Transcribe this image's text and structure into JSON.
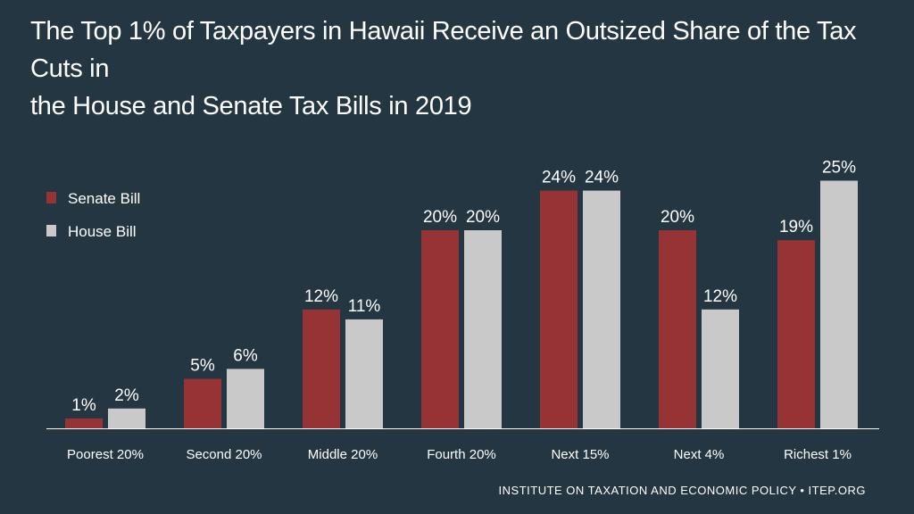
{
  "title": {
    "line1": "The Top 1% of Taxpayers in Hawaii Receive an Outsized Share of the Tax Cuts in",
    "line2": "the House and Senate Tax Bills in 2019"
  },
  "source": "INSTITUTE ON TAXATION AND ECONOMIC POLICY • ITEP.ORG",
  "colors": {
    "background": "#243641",
    "senate": "#963334",
    "house": "#c9c9c9",
    "axis": "#ffffff",
    "text": "#ffffff"
  },
  "chart_data": {
    "type": "bar",
    "title": "The Top 1% of Taxpayers in Hawaii Receive an Outsized Share of the Tax Cuts in the House and Senate Tax Bills in 2019",
    "categories": [
      "Poorest 20%",
      "Second 20%",
      "Middle 20%",
      "Fourth 20%",
      "Next 15%",
      "Next 4%",
      "Richest 1%"
    ],
    "series": [
      {
        "name": "Senate Bill",
        "values": [
          1,
          5,
          12,
          20,
          24,
          20,
          19
        ],
        "labels": [
          "1%",
          "5%",
          "12%",
          "20%",
          "24%",
          "20%",
          "19%"
        ]
      },
      {
        "name": "House Bill",
        "values": [
          2,
          6,
          11,
          20,
          24,
          12,
          25
        ],
        "labels": [
          "2%",
          "6%",
          "11%",
          "20%",
          "24%",
          "12%",
          "25%"
        ]
      }
    ],
    "ylim": [
      0,
      25
    ],
    "grid": false,
    "legend_position": "top-left",
    "xlabel": "",
    "ylabel": ""
  }
}
